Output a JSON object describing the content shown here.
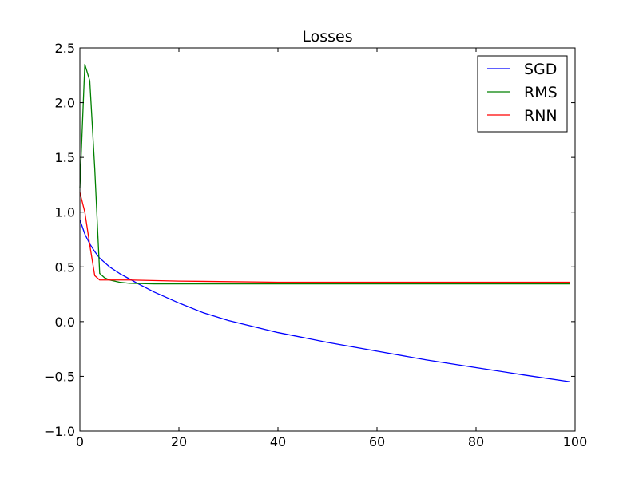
{
  "chart_data": {
    "type": "line",
    "title": "Losses",
    "xlabel": "",
    "ylabel": "",
    "xlim": [
      0,
      100
    ],
    "ylim": [
      -1.0,
      2.5
    ],
    "x_ticks": [
      0,
      20,
      40,
      60,
      80,
      100
    ],
    "x_tick_labels": [
      "0",
      "20",
      "40",
      "60",
      "80",
      "100"
    ],
    "y_ticks": [
      -1.0,
      -0.5,
      0.0,
      0.5,
      1.0,
      1.5,
      2.0,
      2.5
    ],
    "y_tick_labels": [
      "−1.0",
      "−0.5",
      "0.0",
      "0.5",
      "1.0",
      "1.5",
      "2.0",
      "2.5"
    ],
    "grid": false,
    "legend_position": "top-right",
    "series": [
      {
        "name": "SGD",
        "color": "#0000ff",
        "x": [
          0,
          1,
          2,
          3,
          4,
          5,
          6,
          8,
          10,
          12,
          15,
          20,
          25,
          30,
          40,
          50,
          60,
          70,
          80,
          90,
          99
        ],
        "y": [
          0.93,
          0.8,
          0.71,
          0.64,
          0.58,
          0.54,
          0.5,
          0.44,
          0.39,
          0.34,
          0.27,
          0.17,
          0.08,
          0.01,
          -0.1,
          -0.19,
          -0.27,
          -0.35,
          -0.42,
          -0.49,
          -0.55
        ]
      },
      {
        "name": "RMS",
        "color": "#008000",
        "x": [
          0,
          1,
          2,
          3,
          4,
          5,
          6,
          8,
          10,
          15,
          20,
          40,
          60,
          80,
          99
        ],
        "y": [
          1.22,
          2.35,
          2.2,
          1.4,
          0.44,
          0.4,
          0.38,
          0.36,
          0.35,
          0.345,
          0.345,
          0.345,
          0.345,
          0.345,
          0.345
        ]
      },
      {
        "name": "RNN",
        "color": "#ff0000",
        "x": [
          0,
          1,
          2,
          3,
          4,
          5,
          6,
          8,
          10,
          20,
          40,
          60,
          80,
          99
        ],
        "y": [
          1.18,
          1.0,
          0.7,
          0.42,
          0.38,
          0.38,
          0.38,
          0.38,
          0.38,
          0.37,
          0.36,
          0.36,
          0.36,
          0.36
        ]
      }
    ]
  }
}
